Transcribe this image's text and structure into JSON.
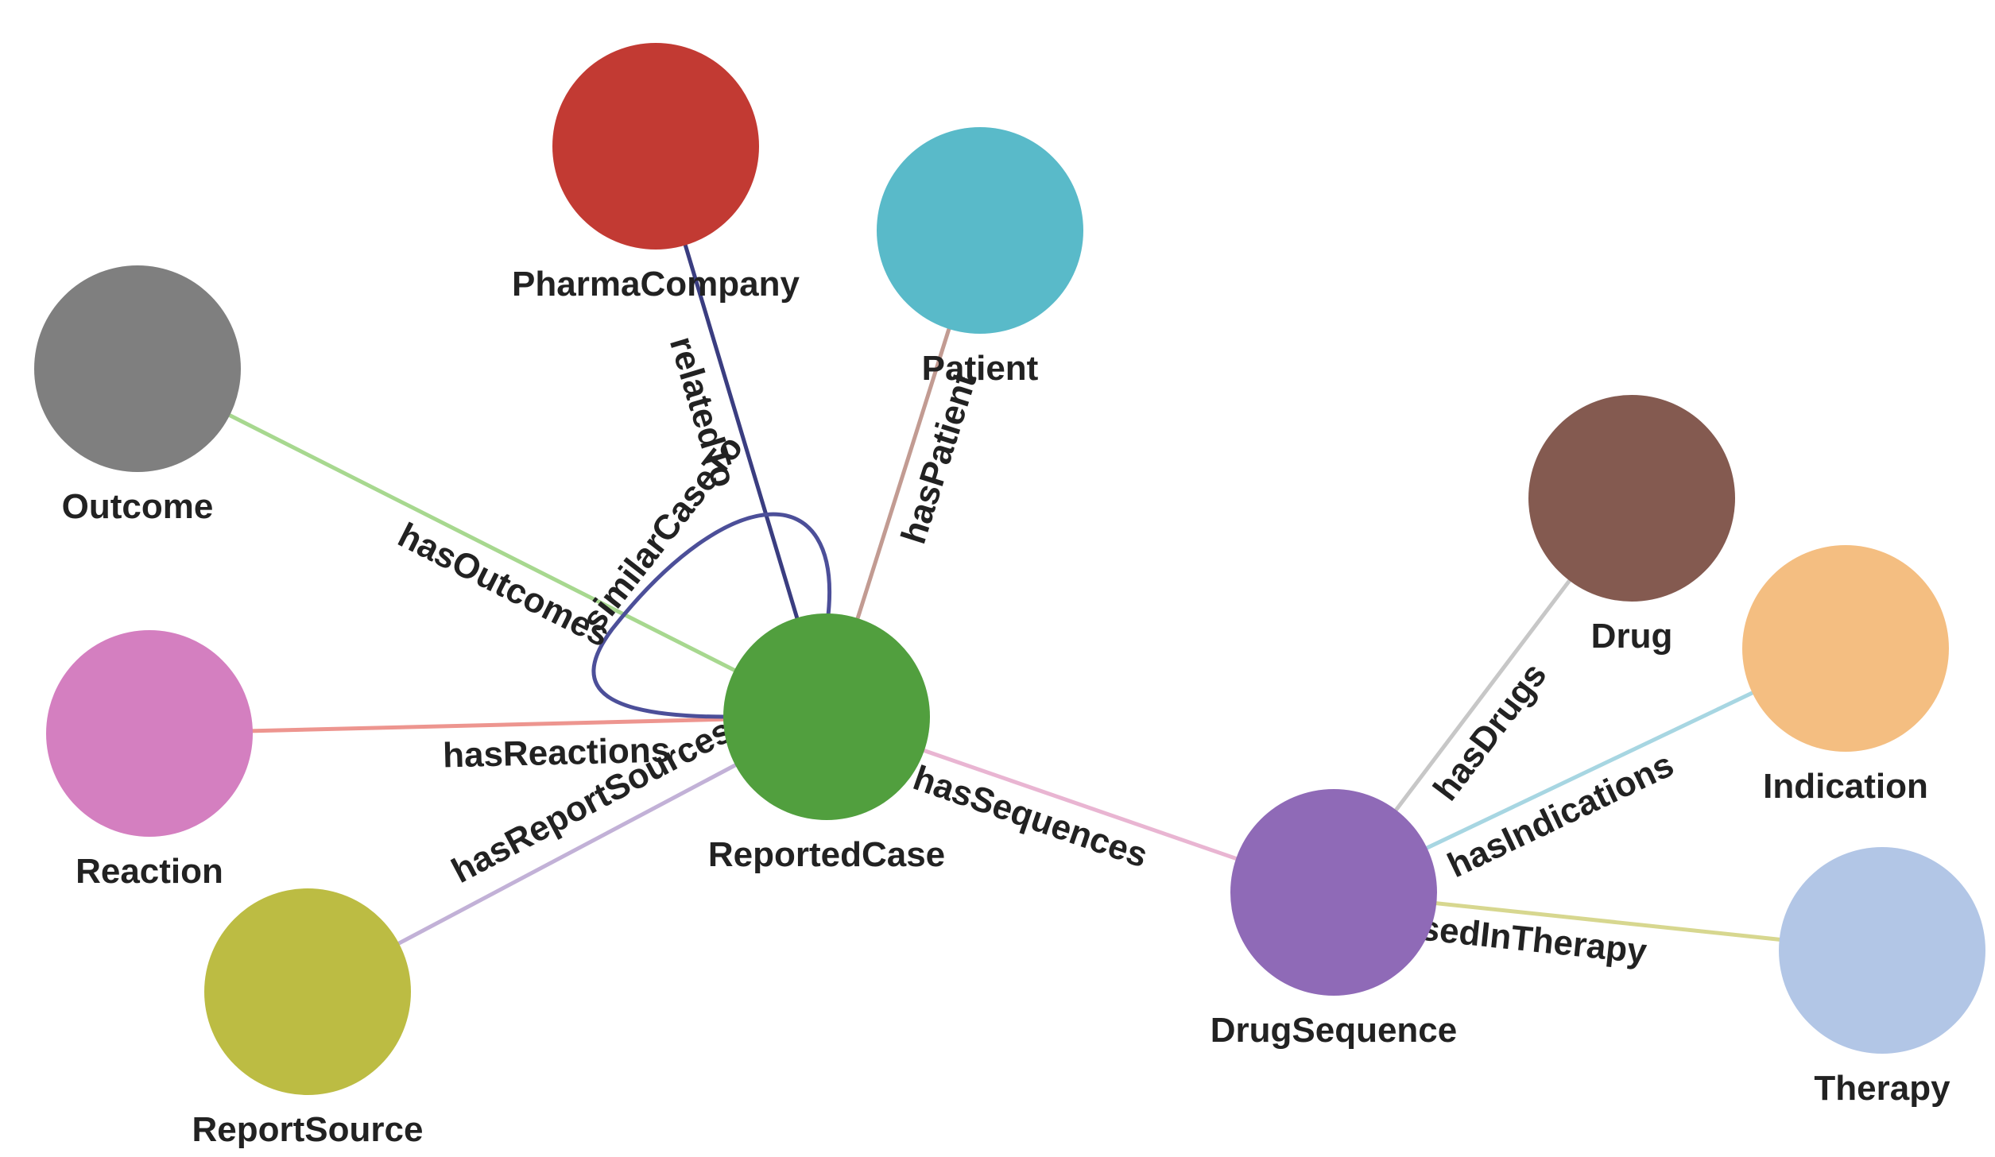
{
  "diagram": {
    "nodes": [
      {
        "id": "PharmaCompany",
        "label": "PharmaCompany",
        "color": "#c23a33"
      },
      {
        "id": "Patient",
        "label": "Patient",
        "color": "#59bac9"
      },
      {
        "id": "Outcome",
        "label": "Outcome",
        "color": "#7f7f7f"
      },
      {
        "id": "Reaction",
        "label": "Reaction",
        "color": "#d47fc0"
      },
      {
        "id": "ReportedCase",
        "label": "ReportedCase",
        "color": "#519f3e"
      },
      {
        "id": "ReportSource",
        "label": "ReportSource",
        "color": "#bcbc43"
      },
      {
        "id": "Drug",
        "label": "Drug",
        "color": "#845a50"
      },
      {
        "id": "Indication",
        "label": "Indication",
        "color": "#f4be81"
      },
      {
        "id": "DrugSequence",
        "label": "DrugSequence",
        "color": "#8f6ab7"
      },
      {
        "id": "Therapy",
        "label": "Therapy",
        "color": "#b2c6e6"
      }
    ],
    "edges": [
      {
        "source": "ReportedCase",
        "target": "PharmaCompany",
        "label": "relatedTo",
        "color": "#3a3d80"
      },
      {
        "source": "ReportedCase",
        "target": "Patient",
        "label": "hasPatient",
        "color": "#c29b92"
      },
      {
        "source": "ReportedCase",
        "target": "Outcome",
        "label": "hasOutcomes",
        "color": "#a7d88f"
      },
      {
        "source": "ReportedCase",
        "target": "Reaction",
        "label": "hasReactions",
        "color": "#ed958f"
      },
      {
        "source": "ReportedCase",
        "target": "ReportSource",
        "label": "hasReportSources",
        "color": "#c2b1d7"
      },
      {
        "source": "ReportedCase",
        "target": "DrugSequence",
        "label": "hasSequences",
        "color": "#e9b5d2"
      },
      {
        "source": "DrugSequence",
        "target": "Drug",
        "label": "hasDrugs",
        "color": "#c7c7c7"
      },
      {
        "source": "DrugSequence",
        "target": "Indication",
        "label": "hasIndications",
        "color": "#a7d6e2"
      },
      {
        "source": "DrugSequence",
        "target": "Therapy",
        "label": "isUsedInTherapy",
        "color": "#d7d78f"
      },
      {
        "source": "ReportedCase",
        "target": "ReportedCase",
        "label": "similarCaseTo",
        "color": "#4c4f99"
      }
    ]
  }
}
